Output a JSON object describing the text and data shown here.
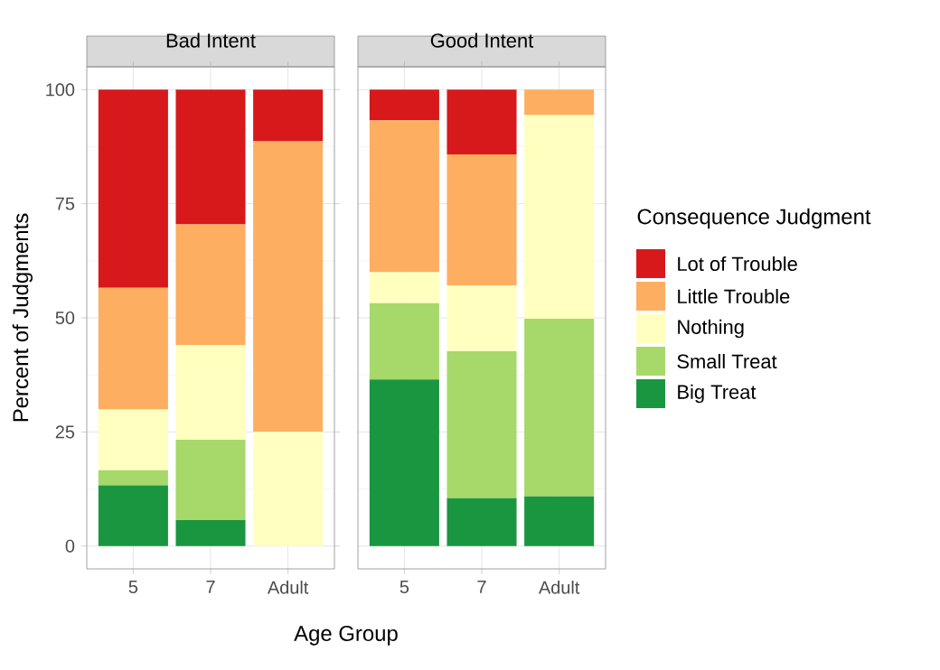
{
  "chart_data": [
    {
      "type": "bar",
      "title": "Bad Intent",
      "xlabel": "Age Group",
      "ylabel": "Percent of Judgments",
      "stacked": true,
      "grid": true,
      "categories": [
        "5",
        "7",
        "Adult"
      ],
      "ylim": [
        -5,
        105
      ],
      "yticks": [
        0,
        25,
        50,
        75,
        100
      ],
      "series": [
        {
          "color": "#1a9641",
          "values": [
            13.3,
            5.7,
            0
          ]
        },
        {
          "color": "#a6d96a",
          "values": [
            3.3,
            17.6,
            0
          ]
        },
        {
          "color": "#ffffbf",
          "values": [
            13.3,
            20.7,
            25
          ]
        },
        {
          "color": "#fdae61",
          "values": [
            26.7,
            26.5,
            63.7
          ]
        },
        {
          "color": "#d7191c",
          "values": [
            43.4,
            29.5,
            11.3
          ]
        }
      ]
    },
    {
      "type": "bar",
      "title": "Good Intent",
      "legend_title": "Consequence Judgment",
      "legend": "right",
      "stacked": true,
      "grid": true,
      "categories": [
        "5",
        "7",
        "Adult"
      ],
      "ylim": [
        -5,
        105
      ],
      "yticks": [
        0,
        25,
        50,
        75,
        100
      ],
      "tick_labels": "x",
      "series": [
        {
          "name": "Big Treat",
          "color": "#1a9641",
          "values": [
            36.5,
            10.5,
            10.9
          ]
        },
        {
          "name": "Small Treat",
          "color": "#a6d96a",
          "values": [
            16.7,
            32.2,
            38.9
          ]
        },
        {
          "name": "Nothing",
          "color": "#ffffbf",
          "values": [
            6.8,
            14.4,
            44.6
          ]
        },
        {
          "name": "Little Trouble",
          "color": "#fdae61",
          "values": [
            33.3,
            28.7,
            5.6
          ]
        },
        {
          "name": "Lot of Trouble",
          "color": "#d7191c",
          "values": [
            6.7,
            14.2,
            0
          ]
        }
      ]
    }
  ]
}
